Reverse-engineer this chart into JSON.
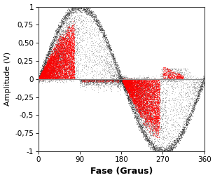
{
  "title": "",
  "xlabel": "Fase (Graus)",
  "ylabel": "Amplitude (V)",
  "xlim": [
    0,
    360
  ],
  "ylim": [
    -1,
    1
  ],
  "xticks": [
    0,
    90,
    180,
    270,
    360
  ],
  "yticks": [
    -1,
    -0.75,
    -0.5,
    -0.25,
    0,
    0.25,
    0.5,
    0.75,
    1
  ],
  "ytick_labels": [
    "-1",
    "-0,75",
    "-0,5",
    "-0,25",
    "0",
    "0,25",
    "0,50",
    "0,75",
    "1"
  ],
  "xtick_labels": [
    "0",
    "90",
    "180",
    "270",
    "360"
  ],
  "background_color": "#ffffff",
  "plot_bg_color": "#ffffff",
  "hline_color": "#888888",
  "red_color": "#ff0000",
  "dark_color": "#2a2a2a",
  "xlabel_fontsize": 9,
  "ylabel_fontsize": 8,
  "tick_fontsize": 7.5,
  "xlabel_fontweight": "bold",
  "figsize": [
    3.07,
    2.57
  ],
  "dpi": 100
}
